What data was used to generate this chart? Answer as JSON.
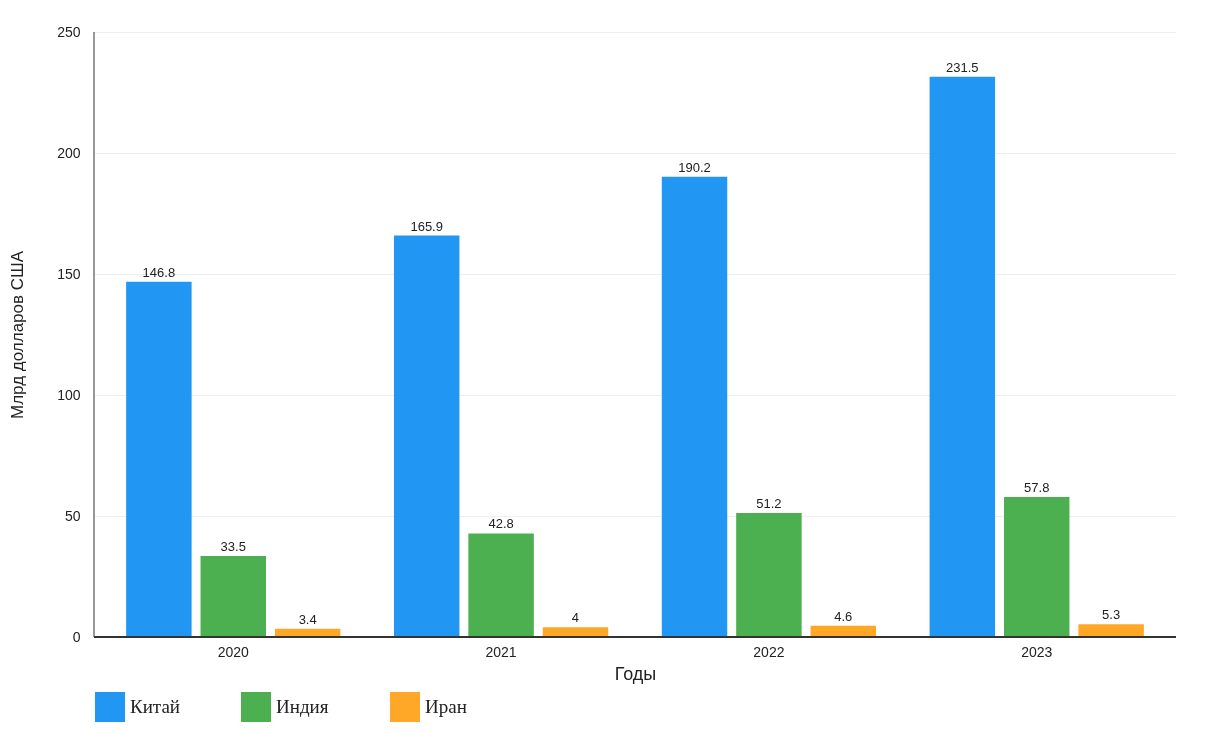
{
  "chart_data": {
    "type": "bar",
    "xlabel": "Годы",
    "ylabel": "Млрд долларов США",
    "categories": [
      "2020",
      "2021",
      "2022",
      "2023"
    ],
    "series": [
      {
        "name": "Китай",
        "color": "#2196f3",
        "values": [
          146.8,
          165.9,
          190.2,
          231.5
        ]
      },
      {
        "name": "Индия",
        "color": "#4caf50",
        "values": [
          33.5,
          42.8,
          51.2,
          57.8
        ]
      },
      {
        "name": "Иран",
        "color": "#ffa726",
        "values": [
          3.4,
          4,
          4.6,
          5.3
        ]
      }
    ],
    "ylim": [
      0,
      250
    ],
    "yticks": [
      0,
      50,
      100,
      150,
      200,
      250
    ],
    "grid": "y",
    "legend": "bottom",
    "data_labels": true
  }
}
